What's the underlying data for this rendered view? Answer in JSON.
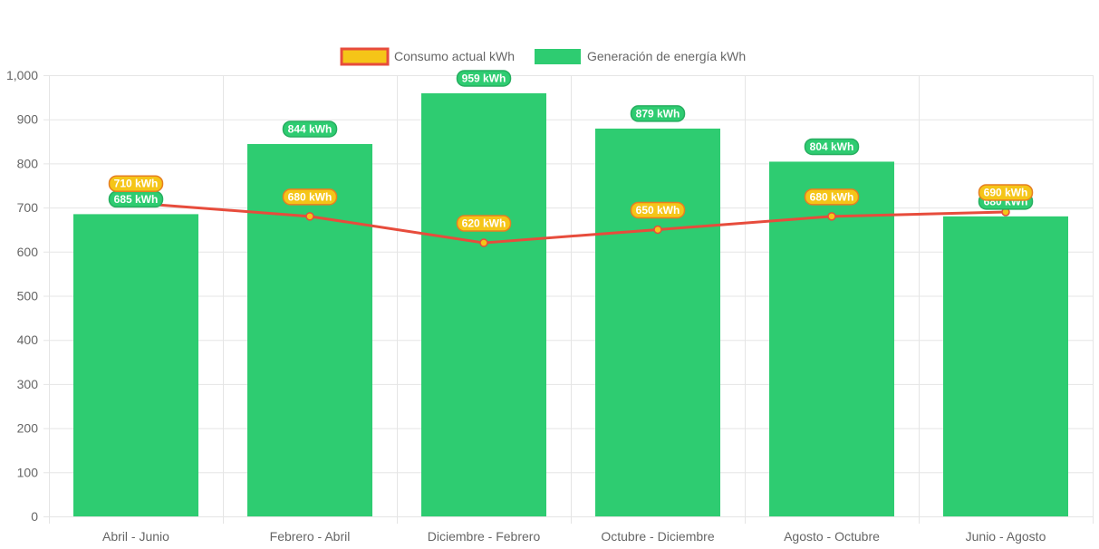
{
  "chart_data": {
    "type": "bar",
    "categories": [
      "Abril - Junio",
      "Febrero - Abril",
      "Diciembre - Febrero",
      "Octubre - Diciembre",
      "Agosto - Octubre",
      "Junio - Agosto"
    ],
    "series": [
      {
        "name": "Consumo actual kWh",
        "type": "line",
        "values": [
          710,
          680,
          620,
          650,
          680,
          690
        ],
        "color": "#e74c3c",
        "point_color": "#f5c518",
        "label_suffix": " kWh"
      },
      {
        "name": "Generación de energía kWh",
        "type": "bar",
        "values": [
          685,
          844,
          959,
          879,
          804,
          680
        ],
        "color": "#2ecc71",
        "label_suffix": " kWh"
      }
    ],
    "ylim": [
      0,
      1000
    ],
    "yticks": [
      0,
      100,
      200,
      300,
      400,
      500,
      600,
      700,
      800,
      900,
      1000
    ],
    "ytick_labels": [
      "0",
      "100",
      "200",
      "300",
      "400",
      "500",
      "600",
      "700",
      "800",
      "900",
      "1,000"
    ],
    "grid": true,
    "legend_position": "top-center",
    "colors": {
      "grid": "#e5e5e5",
      "axis_text": "#666666",
      "label_text": "#ffffff"
    }
  }
}
